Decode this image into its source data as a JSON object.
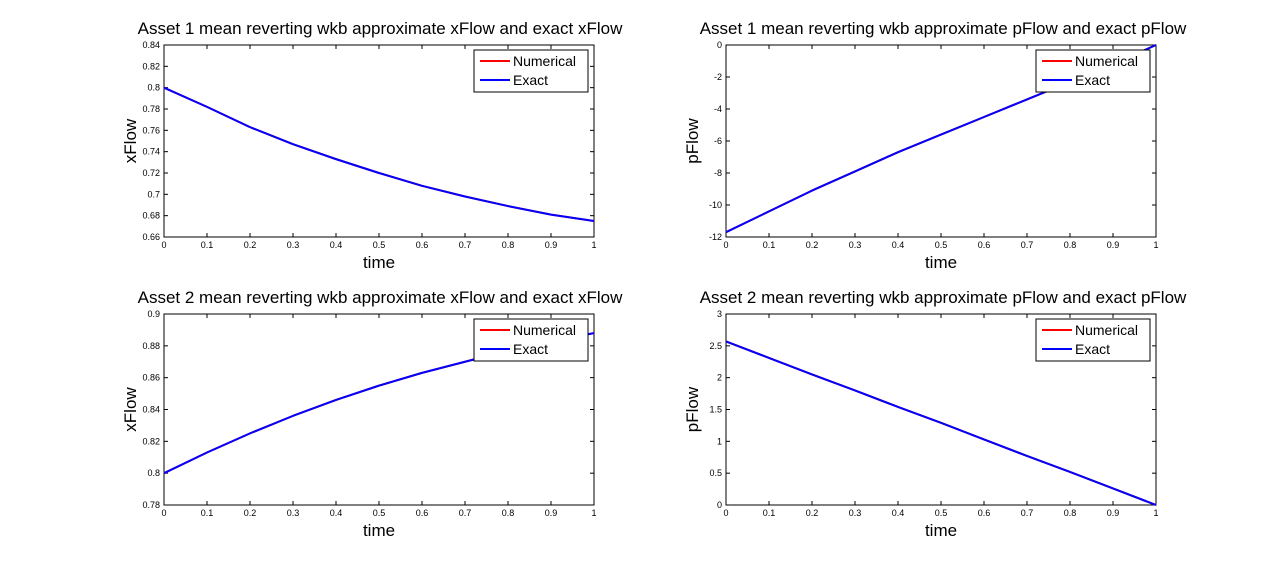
{
  "figure": {
    "colors": {
      "numerical": "#ff0000",
      "exact": "#0000ff"
    }
  },
  "chart_data": [
    {
      "type": "line",
      "title": "Asset 1 mean reverting wkb approximate xFlow and exact xFlow",
      "xlabel": "time",
      "ylabel": "xFlow",
      "xlim": [
        0,
        1
      ],
      "ylim": [
        0.66,
        0.84
      ],
      "xticks": [
        "0",
        "0.1",
        "0.2",
        "0.3",
        "0.4",
        "0.5",
        "0.6",
        "0.7",
        "0.8",
        "0.9",
        "1"
      ],
      "yticks": [
        "0.66",
        "0.68",
        "0.7",
        "0.72",
        "0.74",
        "0.76",
        "0.78",
        "0.8",
        "0.82",
        "0.84"
      ],
      "grid": false,
      "legend": "top-right",
      "x": [
        0,
        0.1,
        0.2,
        0.3,
        0.4,
        0.5,
        0.6,
        0.7,
        0.8,
        0.9,
        1
      ],
      "series": [
        {
          "name": "Numerical",
          "color": "#ff0000",
          "values": [
            0.8,
            0.782,
            0.763,
            0.747,
            0.733,
            0.72,
            0.708,
            0.698,
            0.689,
            0.681,
            0.675
          ]
        },
        {
          "name": "Exact",
          "color": "#0000ff",
          "values": [
            0.8,
            0.782,
            0.763,
            0.747,
            0.733,
            0.72,
            0.708,
            0.698,
            0.689,
            0.681,
            0.675
          ]
        }
      ]
    },
    {
      "type": "line",
      "title": "Asset 1 mean reverting wkb approximate pFlow and exact pFlow",
      "xlabel": "time",
      "ylabel": "pFlow",
      "xlim": [
        0,
        1
      ],
      "ylim": [
        -12,
        0
      ],
      "xticks": [
        "0",
        "0.1",
        "0.2",
        "0.3",
        "0.4",
        "0.5",
        "0.6",
        "0.7",
        "0.8",
        "0.9",
        "1"
      ],
      "yticks": [
        "-12",
        "-10",
        "-8",
        "-6",
        "-4",
        "-2",
        "0"
      ],
      "grid": false,
      "legend": "top-right",
      "x": [
        0,
        0.1,
        0.2,
        0.3,
        0.4,
        0.5,
        0.6,
        0.7,
        0.8,
        0.9,
        1
      ],
      "series": [
        {
          "name": "Numerical",
          "color": "#ff0000",
          "values": [
            -11.7,
            -10.4,
            -9.1,
            -7.9,
            -6.7,
            -5.6,
            -4.5,
            -3.4,
            -2.3,
            -1.2,
            0
          ]
        },
        {
          "name": "Exact",
          "color": "#0000ff",
          "values": [
            -11.7,
            -10.4,
            -9.1,
            -7.9,
            -6.7,
            -5.6,
            -4.5,
            -3.4,
            -2.3,
            -1.2,
            0
          ]
        }
      ]
    },
    {
      "type": "line",
      "title": "Asset 2 mean reverting wkb approximate xFlow and exact xFlow",
      "xlabel": "time",
      "ylabel": "xFlow",
      "xlim": [
        0,
        1
      ],
      "ylim": [
        0.78,
        0.9
      ],
      "xticks": [
        "0",
        "0.1",
        "0.2",
        "0.3",
        "0.4",
        "0.5",
        "0.6",
        "0.7",
        "0.8",
        "0.9",
        "1"
      ],
      "yticks": [
        "0.78",
        "0.8",
        "0.82",
        "0.84",
        "0.86",
        "0.88",
        "0.9"
      ],
      "grid": false,
      "legend": "top-right",
      "x": [
        0,
        0.1,
        0.2,
        0.3,
        0.4,
        0.5,
        0.6,
        0.7,
        0.8,
        0.9,
        1
      ],
      "series": [
        {
          "name": "Numerical",
          "color": "#ff0000",
          "values": [
            0.8,
            0.813,
            0.825,
            0.836,
            0.846,
            0.855,
            0.863,
            0.87,
            0.877,
            0.883,
            0.888
          ]
        },
        {
          "name": "Exact",
          "color": "#0000ff",
          "values": [
            0.8,
            0.813,
            0.825,
            0.836,
            0.846,
            0.855,
            0.863,
            0.87,
            0.877,
            0.883,
            0.888
          ]
        }
      ]
    },
    {
      "type": "line",
      "title": "Asset 2 mean reverting wkb approximate pFlow and exact pFlow",
      "xlabel": "time",
      "ylabel": "pFlow",
      "xlim": [
        0,
        1
      ],
      "ylim": [
        0,
        3
      ],
      "xticks": [
        "0",
        "0.1",
        "0.2",
        "0.3",
        "0.4",
        "0.5",
        "0.6",
        "0.7",
        "0.8",
        "0.9",
        "1"
      ],
      "yticks": [
        "0",
        "0.5",
        "1",
        "1.5",
        "2",
        "2.5",
        "3"
      ],
      "grid": false,
      "legend": "top-right",
      "x": [
        0,
        0.1,
        0.2,
        0.3,
        0.4,
        0.5,
        0.6,
        0.7,
        0.8,
        0.9,
        1
      ],
      "series": [
        {
          "name": "Numerical",
          "color": "#ff0000",
          "values": [
            2.57,
            2.31,
            2.05,
            1.8,
            1.54,
            1.29,
            1.03,
            0.77,
            0.52,
            0.26,
            0
          ]
        },
        {
          "name": "Exact",
          "color": "#0000ff",
          "values": [
            2.57,
            2.31,
            2.05,
            1.8,
            1.54,
            1.29,
            1.03,
            0.77,
            0.52,
            0.26,
            0
          ]
        }
      ]
    }
  ]
}
